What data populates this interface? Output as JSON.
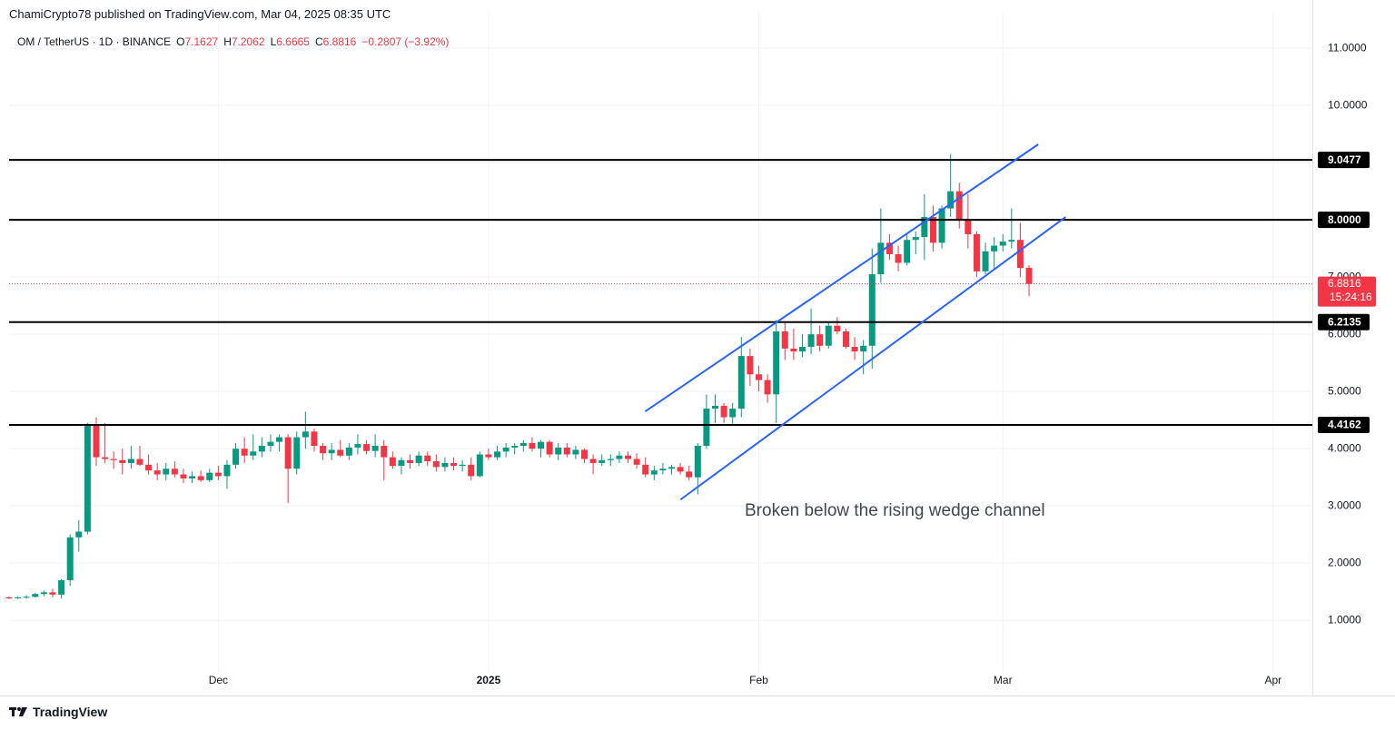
{
  "published": "ChamiCrypto78 published on TradingView.com, Mar 04, 2025 08:35 UTC",
  "footer": "TradingView",
  "chart_data": {
    "type": "candlestick",
    "header": {
      "symbol": "OM / TetherUS · 1D · BINANCE",
      "ohlc": [
        {
          "key": "O",
          "value": "7.1627"
        },
        {
          "key": "H",
          "value": "7.2062"
        },
        {
          "key": "L",
          "value": "6.6665"
        },
        {
          "key": "C",
          "value": "6.8816"
        }
      ],
      "change": "−0.2807 (−3.92%)"
    },
    "annotation": "Broken below the rising wedge channel",
    "up_color": "#089981",
    "down_color": "#f23645",
    "xlim": [
      1,
      150.5
    ],
    "ylim": [
      0.13,
      11.32
    ],
    "xticks": [
      {
        "value": 25,
        "label": "Dec"
      },
      {
        "value": 56,
        "label": "2025"
      },
      {
        "value": 87,
        "label": "Feb"
      },
      {
        "value": 115,
        "label": "Mar"
      },
      {
        "value": 146,
        "label": "Apr"
      }
    ],
    "yticks": [
      {
        "value": 1,
        "label": "1.0000"
      },
      {
        "value": 2,
        "label": "2.0000"
      },
      {
        "value": 3,
        "label": "3.0000"
      },
      {
        "value": 4,
        "label": "4.0000"
      },
      {
        "value": 5,
        "label": "5.0000"
      },
      {
        "value": 6,
        "label": "6.0000"
      },
      {
        "value": 7,
        "label": "7.0000"
      },
      {
        "value": 8,
        "label": "8.0000"
      },
      {
        "value": 9,
        "label": "9.0000"
      },
      {
        "value": 10,
        "label": "10.0000"
      },
      {
        "value": 11,
        "label": "11.0000"
      }
    ],
    "grid": true,
    "x": [
      1,
      2,
      3,
      4,
      5,
      6,
      7,
      8,
      9,
      10,
      11,
      12,
      13,
      14,
      15,
      16,
      17,
      18,
      19,
      20,
      21,
      22,
      23,
      24,
      25,
      26,
      27,
      28,
      29,
      30,
      31,
      32,
      33,
      34,
      35,
      36,
      37,
      38,
      39,
      40,
      41,
      42,
      43,
      44,
      45,
      46,
      47,
      48,
      49,
      50,
      51,
      52,
      53,
      54,
      55,
      56,
      57,
      58,
      59,
      60,
      61,
      62,
      63,
      64,
      65,
      66,
      67,
      68,
      69,
      70,
      71,
      72,
      73,
      74,
      75,
      76,
      77,
      78,
      79,
      80,
      81,
      82,
      83,
      84,
      85,
      86,
      87,
      88,
      89,
      90,
      91,
      92,
      93,
      94,
      95,
      96,
      97,
      98,
      99,
      100,
      101,
      102,
      103,
      104,
      105,
      106,
      107,
      108,
      109,
      110,
      111,
      112,
      113,
      114,
      115,
      116,
      117,
      118
    ],
    "open": [
      1.4,
      1.39,
      1.4,
      1.41,
      1.46,
      1.49,
      1.45,
      1.7,
      2.45,
      2.55,
      4.4,
      3.85,
      3.82,
      3.8,
      3.75,
      3.82,
      3.72,
      3.62,
      3.55,
      3.65,
      3.55,
      3.48,
      3.52,
      3.45,
      3.58,
      3.52,
      3.72,
      4.0,
      3.88,
      3.95,
      4.05,
      4.12,
      4.2,
      3.65,
      4.2,
      4.3,
      4.05,
      3.92,
      3.98,
      3.88,
      4.02,
      4.08,
      3.96,
      4.05,
      3.85,
      3.7,
      3.8,
      3.75,
      3.88,
      3.78,
      3.68,
      3.75,
      3.7,
      3.72,
      3.52,
      3.9,
      3.85,
      3.95,
      4.02,
      4.05,
      4.1,
      4.0,
      4.12,
      3.9,
      4.02,
      3.9,
      3.98,
      3.82,
      3.75,
      3.8,
      3.82,
      3.88,
      3.82,
      3.72,
      3.55,
      3.62,
      3.65,
      3.68,
      3.6,
      3.5,
      4.05,
      4.7,
      4.75,
      4.55,
      4.7,
      5.62,
      5.3,
      5.2,
      4.95,
      6.05,
      5.75,
      5.7,
      5.78,
      6.0,
      5.8,
      6.15,
      6.05,
      5.78,
      5.7,
      5.8,
      7.05,
      7.6,
      7.4,
      7.25,
      7.65,
      7.7,
      8.05,
      7.6,
      8.2,
      8.5,
      8.0,
      7.75,
      7.1,
      7.45,
      7.55,
      7.62,
      7.65,
      7.1627
    ],
    "high": [
      1.42,
      1.42,
      1.44,
      1.48,
      1.52,
      1.55,
      1.72,
      2.5,
      2.75,
      4.45,
      4.55,
      4.45,
      3.95,
      4.0,
      4.05,
      4.05,
      3.9,
      3.75,
      3.75,
      3.78,
      3.65,
      3.6,
      3.62,
      3.65,
      3.7,
      3.8,
      4.1,
      4.2,
      4.25,
      4.2,
      4.25,
      4.25,
      4.25,
      4.3,
      4.65,
      4.35,
      4.1,
      4.1,
      4.15,
      4.1,
      4.25,
      4.15,
      4.25,
      4.15,
      3.95,
      3.85,
      3.9,
      3.95,
      3.95,
      3.9,
      3.85,
      3.85,
      3.8,
      3.85,
      3.95,
      4.0,
      4.05,
      4.1,
      4.1,
      4.15,
      4.2,
      4.15,
      4.15,
      4.1,
      4.1,
      4.05,
      4.0,
      3.9,
      3.9,
      3.9,
      3.95,
      3.95,
      3.92,
      3.85,
      3.7,
      3.75,
      3.72,
      3.75,
      3.7,
      4.1,
      4.95,
      4.95,
      4.8,
      4.8,
      5.95,
      5.75,
      5.45,
      5.3,
      6.25,
      6.2,
      6.1,
      6.0,
      6.45,
      6.15,
      6.2,
      6.3,
      6.1,
      5.95,
      5.9,
      7.5,
      8.2,
      7.75,
      7.55,
      7.75,
      7.8,
      8.45,
      8.25,
      8.25,
      9.15,
      8.65,
      8.45,
      7.8,
      7.6,
      7.7,
      7.75,
      8.2,
      7.95,
      7.2062
    ],
    "low": [
      1.37,
      1.37,
      1.38,
      1.4,
      1.42,
      1.4,
      1.38,
      1.6,
      2.2,
      2.5,
      3.7,
      3.75,
      3.65,
      3.55,
      3.65,
      3.7,
      3.55,
      3.45,
      3.45,
      3.5,
      3.4,
      3.4,
      3.42,
      3.42,
      3.45,
      3.3,
      3.65,
      3.75,
      3.8,
      3.85,
      3.95,
      3.95,
      3.05,
      3.55,
      4.0,
      3.95,
      3.8,
      3.8,
      3.85,
      3.8,
      3.9,
      3.9,
      3.85,
      3.45,
      3.65,
      3.55,
      3.65,
      3.7,
      3.7,
      3.6,
      3.6,
      3.62,
      3.6,
      3.45,
      3.5,
      3.8,
      3.8,
      3.85,
      3.9,
      3.95,
      3.95,
      3.85,
      3.85,
      3.8,
      3.85,
      3.82,
      3.75,
      3.55,
      3.7,
      3.7,
      3.75,
      3.75,
      3.65,
      3.5,
      3.45,
      3.55,
      3.55,
      3.55,
      3.45,
      3.2,
      4.0,
      4.45,
      4.45,
      4.4,
      4.55,
      5.1,
      5.0,
      4.8,
      4.45,
      5.55,
      5.55,
      5.6,
      5.65,
      5.7,
      5.75,
      6.0,
      5.75,
      5.55,
      5.3,
      5.4,
      6.9,
      7.3,
      7.1,
      7.2,
      7.4,
      7.3,
      7.45,
      7.5,
      8.05,
      7.85,
      7.5,
      7.0,
      7.05,
      7.15,
      7.45,
      7.5,
      7.0,
      6.6665
    ],
    "close": [
      1.39,
      1.4,
      1.41,
      1.46,
      1.49,
      1.45,
      1.7,
      2.45,
      2.55,
      4.4,
      3.85,
      3.82,
      3.8,
      3.75,
      3.82,
      3.72,
      3.62,
      3.55,
      3.65,
      3.55,
      3.48,
      3.52,
      3.45,
      3.58,
      3.52,
      3.72,
      4.0,
      3.88,
      3.95,
      4.05,
      4.12,
      4.2,
      3.65,
      4.2,
      4.3,
      4.05,
      3.92,
      3.98,
      3.88,
      4.02,
      4.08,
      3.96,
      4.05,
      3.85,
      3.7,
      3.8,
      3.75,
      3.88,
      3.78,
      3.68,
      3.75,
      3.7,
      3.72,
      3.52,
      3.9,
      3.85,
      3.95,
      4.02,
      4.05,
      4.1,
      4.0,
      4.12,
      3.9,
      4.02,
      3.9,
      3.98,
      3.82,
      3.75,
      3.8,
      3.82,
      3.88,
      3.82,
      3.72,
      3.55,
      3.62,
      3.65,
      3.68,
      3.6,
      3.5,
      4.05,
      4.7,
      4.75,
      4.55,
      4.7,
      5.62,
      5.3,
      5.2,
      4.95,
      6.05,
      5.75,
      5.7,
      5.78,
      6.0,
      5.8,
      6.15,
      6.05,
      5.78,
      5.7,
      5.8,
      7.05,
      7.6,
      7.4,
      7.25,
      7.65,
      7.7,
      8.05,
      7.6,
      8.2,
      8.5,
      8.0,
      7.75,
      7.1,
      7.45,
      7.55,
      7.62,
      7.65,
      7.16,
      6.8816
    ],
    "levels": [
      {
        "value": 9.0477,
        "label": "9.0477"
      },
      {
        "value": 8,
        "label": "8.0000"
      },
      {
        "value": 6.2135,
        "label": "6.2135"
      },
      {
        "value": 4.4162,
        "label": "4.4162"
      }
    ],
    "level_color": "#000000",
    "trendlines": [
      {
        "x": [
          73.96,
          119.06
        ],
        "y": [
          4.65,
          9.32
        ]
      },
      {
        "x": [
          78.02,
          122.19
        ],
        "y": [
          3.11,
          8.05
        ]
      }
    ],
    "trend_color": "#2962ff",
    "last_price": {
      "value": 6.8816,
      "countdown": "15:24:16"
    }
  }
}
